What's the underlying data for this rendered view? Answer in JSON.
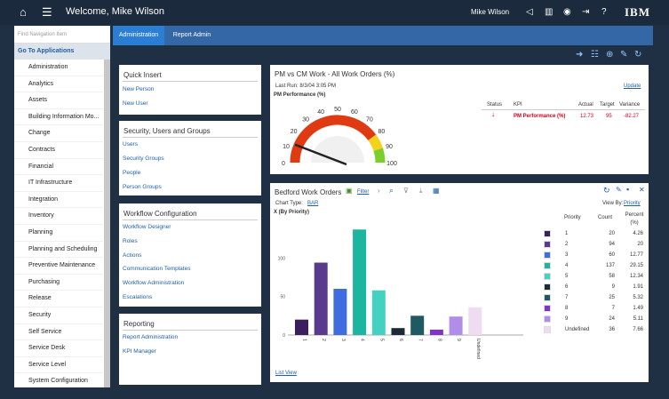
{
  "header": {
    "welcome": "Welcome, Mike Wilson",
    "user": "Mike Wilson",
    "logo": "IBM",
    "icons": [
      "home-icon",
      "menu-icon",
      "megaphone-icon",
      "chart-icon",
      "user-icon",
      "logout-icon",
      "help-icon"
    ]
  },
  "sidebar": {
    "search_placeholder": "Find Navigation Item",
    "go_to": "Go To Applications",
    "items": [
      "Administration",
      "Analytics",
      "Assets",
      "Building Information Mo...",
      "Change",
      "Contracts",
      "Financial",
      "IT Infrastructure",
      "Integration",
      "Inventory",
      "Planning",
      "Planning and Scheduling",
      "Preventive Maintenance",
      "Purchasing",
      "Release",
      "Security",
      "Self Service",
      "Service Desk",
      "Service Level",
      "System Configuration"
    ]
  },
  "tabs": [
    {
      "label": "Administration",
      "active": true
    },
    {
      "label": "Report Admin",
      "active": false
    }
  ],
  "toolbar_icons": [
    "arrow-right-icon",
    "settings-sliders-icon",
    "add-icon",
    "edit-icon",
    "refresh-icon"
  ],
  "quick_insert": {
    "title": "Quick Insert",
    "links": [
      "New Person",
      "New User"
    ]
  },
  "security": {
    "title": "Security, Users and Groups",
    "links": [
      "Users",
      "Security Groups",
      "People",
      "Person Groups"
    ]
  },
  "workflow": {
    "title": "Workflow Configuration",
    "links": [
      "Workflow Designer",
      "Roles",
      "Actions",
      "Communication Templates",
      "Workflow Administration",
      "Escalations"
    ]
  },
  "reporting": {
    "title": "Reporting",
    "links": [
      "Report Administration",
      "KPI Manager"
    ]
  },
  "kpi": {
    "title": "PM vs CM Work - All Work Orders (%)",
    "last_run": "Last Run: 8/3/04 3:05 PM",
    "update": "Update",
    "gauge_title": "PM Performance (%)",
    "gauge_ticks": [
      "0",
      "10",
      "20",
      "30",
      "40",
      "50",
      "60",
      "70",
      "80",
      "90",
      "100"
    ],
    "gauge_value": 12.73,
    "cols": {
      "status": "Status",
      "kpi": "KPI",
      "actual": "Actual",
      "target": "Target",
      "variance": "Variance"
    },
    "row": {
      "kpi": "PM Performance (%)",
      "actual": "12.73",
      "target": "95",
      "variance": "-82.27"
    }
  },
  "wo": {
    "title": "Bedford Work Orders",
    "filter": "Filter",
    "chart_type_label": "Chart Type:",
    "chart_type": "BAR",
    "view_by_label": "View By:",
    "view_by": "Priority",
    "list_view": "List View",
    "table_head": {
      "priority": "Priority",
      "count": "Count",
      "percent": "Percent (%)"
    }
  },
  "chart_data": {
    "type": "bar",
    "title": "X (By Priority)",
    "categories": [
      "1",
      "2",
      "3",
      "4",
      "5",
      "6",
      "7",
      "8",
      "9",
      "Undefined"
    ],
    "values": [
      20,
      94,
      60,
      137,
      58,
      9,
      25,
      7,
      24,
      36
    ],
    "percents": [
      "4.26",
      "20",
      "12.77",
      "29.15",
      "12.34",
      "1.91",
      "5.32",
      "1.49",
      "5.11",
      "7.66"
    ],
    "colors": [
      "#3b1e5e",
      "#5a3a8c",
      "#3f6de0",
      "#1bb5a0",
      "#45d1c0",
      "#1a2a36",
      "#1f5a63",
      "#7f36c8",
      "#b08ee8",
      "#f0dcf2"
    ],
    "yticks": [
      "0",
      "50",
      "100"
    ],
    "ylim": [
      0,
      150
    ]
  }
}
